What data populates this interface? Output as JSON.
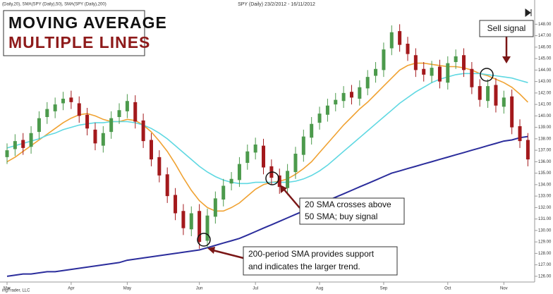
{
  "chart_data": {
    "type": "candlestick",
    "title": "SPY (Daily)  23/2/2012 - 16/11/2012",
    "legend_text": "(Daily,20), SMA(SPY (Daily),50), SMA(SPY (Daily),200)",
    "source": "ingTrader, LLC",
    "heading": [
      "MOVING AVERAGE",
      "MULTIPLE LINES"
    ],
    "categories": [
      "Mar",
      null,
      null,
      null,
      null,
      null,
      null,
      null,
      "Apr",
      null,
      null,
      null,
      null,
      null,
      null,
      "May",
      null,
      null,
      null,
      null,
      null,
      null,
      null,
      null,
      "Jun",
      null,
      null,
      null,
      null,
      null,
      null,
      "Jul",
      null,
      null,
      null,
      null,
      null,
      null,
      null,
      "Aug",
      null,
      null,
      null,
      null,
      null,
      null,
      null,
      "Sep",
      null,
      null,
      null,
      null,
      null,
      null,
      null,
      "Oct",
      null,
      null,
      null,
      null,
      null,
      null,
      "Nov",
      null,
      null,
      null
    ],
    "open": [
      136.4,
      137.1,
      137.9,
      137.3,
      138.6,
      139.9,
      140.4,
      141.1,
      141.6,
      141.1,
      140.1,
      138.8,
      137.4,
      138.6,
      139.9,
      140.4,
      141.2,
      139.6,
      137.9,
      136.4,
      134.9,
      133.1,
      131.7,
      130.1,
      131.7,
      129.1,
      131.2,
      132.7,
      134.1,
      134.4,
      135.9,
      136.8,
      137.4,
      135.6,
      134.8,
      133.7,
      135.1,
      136.6,
      138.1,
      139.4,
      140.1,
      141.0,
      141.3,
      142.1,
      141.5,
      142.4,
      143.5,
      144.0,
      145.9,
      147.4,
      146.3,
      145.3,
      144.1,
      143.5,
      144.3,
      142.9,
      144.7,
      145.3,
      144.1,
      142.6,
      141.3,
      142.7,
      140.8,
      141.7,
      139.1,
      137.9
    ],
    "high": [
      137.6,
      138.4,
      138.5,
      139.1,
      140.4,
      141.2,
      141.6,
      142.1,
      142.2,
      141.7,
      140.7,
      139.4,
      139.1,
      140.4,
      141.1,
      141.9,
      141.8,
      140.2,
      138.5,
      137.0,
      135.5,
      133.7,
      132.3,
      132.1,
      132.3,
      131.9,
      133.4,
      134.5,
      135.1,
      136.4,
      137.5,
      138.1,
      138.0,
      136.2,
      135.4,
      135.8,
      137.3,
      138.8,
      139.9,
      140.8,
      141.5,
      142.0,
      142.6,
      142.7,
      143.1,
      144.0,
      144.7,
      146.4,
      147.9,
      148.0,
      146.9,
      145.9,
      144.7,
      144.8,
      144.9,
      145.2,
      145.8,
      145.9,
      144.7,
      143.2,
      143.2,
      143.3,
      142.2,
      142.3,
      139.7,
      138.5
    ],
    "low": [
      135.8,
      136.5,
      136.6,
      136.7,
      138.0,
      139.3,
      139.8,
      140.5,
      140.6,
      139.4,
      138.3,
      137.0,
      136.8,
      138.0,
      139.3,
      139.8,
      138.9,
      137.2,
      135.6,
      134.2,
      132.4,
      130.9,
      129.6,
      129.5,
      128.4,
      128.5,
      130.6,
      132.1,
      133.5,
      133.8,
      135.3,
      136.2,
      134.9,
      134.0,
      133.2,
      133.1,
      134.5,
      136.0,
      137.5,
      138.8,
      139.5,
      140.4,
      140.7,
      141.0,
      140.9,
      141.8,
      142.9,
      143.4,
      145.3,
      145.6,
      144.8,
      143.4,
      143.0,
      142.9,
      142.4,
      142.3,
      144.1,
      143.4,
      141.9,
      140.8,
      140.7,
      140.3,
      140.2,
      138.4,
      137.2,
      135.6
    ],
    "close": [
      137.0,
      137.8,
      137.2,
      138.5,
      139.8,
      140.6,
      141.0,
      141.5,
      141.2,
      140.0,
      138.9,
      137.6,
      138.5,
      139.8,
      140.5,
      141.3,
      139.5,
      137.8,
      136.2,
      134.8,
      133.0,
      131.5,
      130.2,
      131.5,
      129.0,
      131.3,
      132.8,
      133.9,
      134.5,
      135.8,
      136.9,
      137.5,
      135.5,
      134.6,
      133.8,
      135.2,
      136.7,
      138.2,
      139.3,
      140.2,
      140.9,
      141.4,
      142.0,
      141.6,
      142.5,
      143.4,
      144.1,
      145.8,
      147.3,
      146.2,
      145.4,
      144.0,
      143.6,
      144.2,
      143.0,
      144.6,
      145.2,
      144.0,
      142.5,
      141.4,
      142.6,
      140.9,
      141.6,
      139.0,
      137.8,
      136.2
    ],
    "up_color": "#4c9a4c",
    "down_color": "#a3191c",
    "series": [
      {
        "color": "#f0a232",
        "values": [
          136.0,
          136.4,
          136.9,
          137.4,
          137.9,
          138.4,
          138.9,
          139.4,
          139.8,
          140.1,
          140.2,
          140.0,
          139.7,
          139.5,
          139.5,
          139.7,
          139.6,
          139.2,
          138.6,
          137.8,
          136.9,
          135.8,
          134.6,
          133.5,
          132.6,
          132.0,
          131.7,
          131.7,
          132.0,
          132.4,
          133.0,
          133.6,
          134.0,
          134.2,
          134.3,
          134.5,
          134.9,
          135.4,
          136.0,
          136.8,
          137.6,
          138.4,
          139.2,
          139.9,
          140.6,
          141.2,
          141.9,
          142.6,
          143.3,
          144.0,
          144.4,
          144.6,
          144.6,
          144.5,
          144.4,
          144.3,
          144.3,
          144.2,
          144.0,
          143.7,
          143.5,
          143.2,
          142.9,
          142.5,
          141.9,
          141.2
        ]
      },
      {
        "color": "#5fd8e2",
        "values": [
          137.2,
          137.4,
          137.6,
          137.8,
          138.0,
          138.3,
          138.5,
          138.8,
          139.0,
          139.2,
          139.3,
          139.4,
          139.4,
          139.5,
          139.5,
          139.5,
          139.4,
          139.2,
          138.9,
          138.5,
          138.0,
          137.4,
          136.8,
          136.2,
          135.6,
          135.1,
          134.7,
          134.4,
          134.2,
          134.1,
          134.1,
          134.2,
          134.2,
          134.2,
          134.2,
          134.2,
          134.3,
          134.5,
          134.8,
          135.2,
          135.7,
          136.3,
          136.9,
          137.5,
          138.1,
          138.7,
          139.3,
          139.9,
          140.5,
          141.1,
          141.6,
          142.1,
          142.5,
          142.9,
          143.2,
          143.4,
          143.6,
          143.7,
          143.7,
          143.7,
          143.6,
          143.5,
          143.4,
          143.3,
          143.1,
          142.9
        ]
      },
      {
        "color": "#2b2d9c",
        "values": [
          126.0,
          126.1,
          126.2,
          126.2,
          126.3,
          126.4,
          126.4,
          126.5,
          126.6,
          126.7,
          126.8,
          126.9,
          127.0,
          127.1,
          127.2,
          127.4,
          127.5,
          127.6,
          127.7,
          127.8,
          127.9,
          128.0,
          128.1,
          128.2,
          128.3,
          128.5,
          128.7,
          128.9,
          129.1,
          129.3,
          129.6,
          129.9,
          130.2,
          130.5,
          130.8,
          131.1,
          131.4,
          131.7,
          132.0,
          132.3,
          132.6,
          132.9,
          133.2,
          133.5,
          133.8,
          134.1,
          134.4,
          134.7,
          135.0,
          135.2,
          135.4,
          135.6,
          135.8,
          136.0,
          136.2,
          136.4,
          136.6,
          136.8,
          137.0,
          137.2,
          137.4,
          137.6,
          137.8,
          137.9,
          138.1,
          138.2
        ]
      }
    ],
    "ylim": [
      125.5,
      149.5
    ],
    "yticks": [
      {
        "value": 126,
        "label": "126.00"
      },
      {
        "value": 127,
        "label": "127.00"
      },
      {
        "value": 128,
        "label": "128.00"
      },
      {
        "value": 129,
        "label": "129.00"
      },
      {
        "value": 130,
        "label": "130.00"
      },
      {
        "value": 131,
        "label": "131.00"
      },
      {
        "value": 132,
        "label": "132.00"
      },
      {
        "value": 133,
        "label": "133.00"
      },
      {
        "value": 134,
        "label": "134.00"
      },
      {
        "value": 135,
        "label": "135.00"
      },
      {
        "value": 136,
        "label": "136.00"
      },
      {
        "value": 137,
        "label": "137.00"
      },
      {
        "value": 138,
        "label": "138.00"
      },
      {
        "value": 139,
        "label": "139.00"
      },
      {
        "value": 140,
        "label": "140.00"
      },
      {
        "value": 141,
        "label": "141.00"
      },
      {
        "value": 142,
        "label": "142.00"
      },
      {
        "value": 143,
        "label": "143.00"
      },
      {
        "value": 144,
        "label": "144.00"
      },
      {
        "value": 145,
        "label": "145.00"
      },
      {
        "value": 146,
        "label": "146.00"
      },
      {
        "value": 147,
        "label": "147.00"
      },
      {
        "value": 148,
        "label": "148.00"
      }
    ],
    "annotations": [
      [
        "Sell signal"
      ],
      [
        "20 SMA crosses above",
        "50 SMA; buy signal"
      ],
      [
        "200-period SMA provides support",
        "and indicates the larger trend."
      ]
    ]
  }
}
